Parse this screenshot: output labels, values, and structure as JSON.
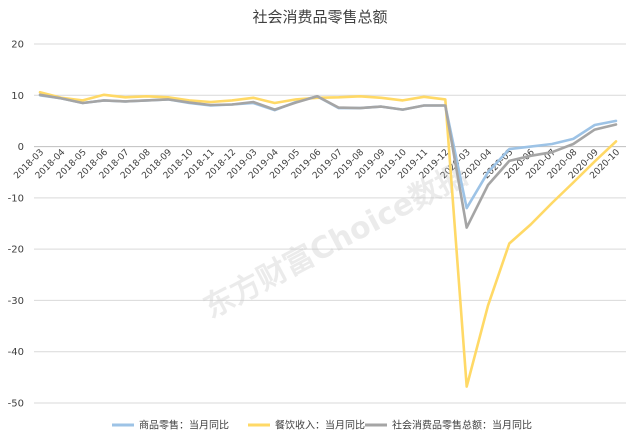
{
  "chart_data": {
    "type": "line",
    "title": "社会消费品零售总额",
    "categories": [
      "2018-03",
      "2018-04",
      "2018-05",
      "2018-06",
      "2018-07",
      "2018-08",
      "2018-09",
      "2018-10",
      "2018-11",
      "2018-12",
      "2019-03",
      "2019-04",
      "2019-05",
      "2019-06",
      "2019-07",
      "2019-08",
      "2019-09",
      "2019-10",
      "2019-11",
      "2019-12",
      "2020-03",
      "2020-04",
      "2020-05",
      "2020-06",
      "2020-07",
      "2020-08",
      "2020-09",
      "2020-10"
    ],
    "series": [
      {
        "name": "商品零售：当月同比",
        "color": "#9dc3e6",
        "values": [
          10.0,
          9.4,
          8.5,
          9.0,
          8.8,
          9.0,
          9.2,
          8.5,
          8.0,
          8.2,
          8.5,
          7.1,
          8.7,
          9.8,
          7.5,
          7.5,
          7.8,
          7.2,
          8.0,
          8.0,
          -12.0,
          -5.0,
          -0.5,
          0.0,
          0.5,
          1.5,
          4.2,
          5.0
        ]
      },
      {
        "name": "餐饮收入：当月同比",
        "color": "#ffd966",
        "values": [
          10.6,
          9.5,
          9.0,
          10.1,
          9.6,
          9.8,
          9.6,
          9.0,
          8.7,
          9.0,
          9.5,
          8.5,
          9.2,
          9.5,
          9.6,
          9.8,
          9.5,
          9.0,
          9.7,
          9.2,
          -46.8,
          -31.0,
          -18.9,
          -15.2,
          -11.0,
          -7.0,
          -2.9,
          1.0
        ]
      },
      {
        "name": "社会消费品零售总额：当月同比",
        "color": "#a5a5a5",
        "values": [
          10.1,
          9.4,
          8.5,
          9.0,
          8.8,
          9.0,
          9.2,
          8.6,
          8.1,
          8.2,
          8.7,
          7.2,
          8.6,
          9.8,
          7.6,
          7.5,
          7.8,
          7.2,
          8.0,
          8.0,
          -15.8,
          -7.5,
          -2.8,
          -1.8,
          -1.1,
          0.5,
          3.3,
          4.3
        ]
      }
    ],
    "ylim": [
      -50,
      20
    ],
    "yticks": [
      20,
      10,
      0,
      -10,
      -20,
      -30,
      -40,
      -50
    ],
    "grid": true,
    "legend_position": "bottom"
  },
  "watermark": "东方财富Choice数据"
}
